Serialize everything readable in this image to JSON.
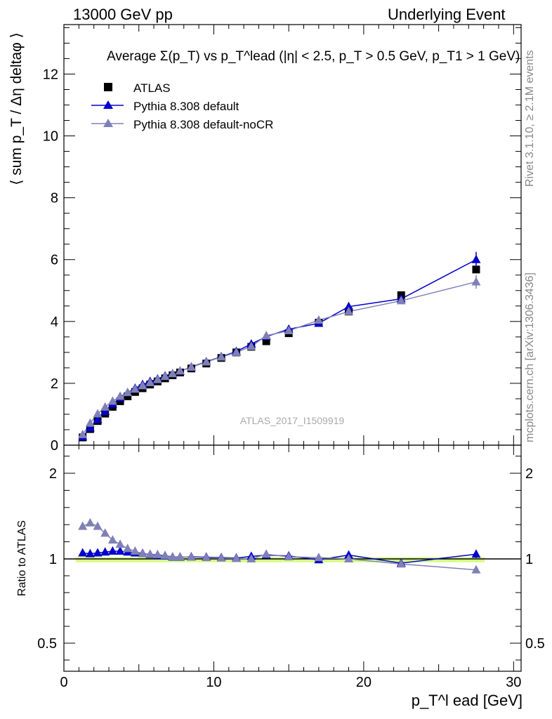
{
  "header": {
    "left": "13000 GeV pp",
    "right": "Underlying Event"
  },
  "side": {
    "rivet": "Rivet 3.1.10, ≥ 2.1M events",
    "mcplots": "mcplots.cern.ch [arXiv:1306.3436]"
  },
  "chart_data": {
    "type": "scatter",
    "title": "Average Σ(p_T) vs p_T^lead (|η| < 2.5, p_T > 0.5 GeV, p_T1 > 1 GeV)",
    "ylabel": "⟨ sum p_T / Δη deltaφ ⟩",
    "xlabel": "p_T^l ead [GeV]",
    "ratio_ylabel": "Ratio to ATLAS",
    "watermark": "ATLAS_2017_I1509919",
    "xlim": [
      0,
      30.5
    ],
    "ylim": [
      0,
      13.6
    ],
    "ratio_ylim": [
      0.35,
      2.3
    ],
    "x_ticks": [
      0,
      10,
      20,
      30
    ],
    "y_ticks": [
      0,
      2,
      4,
      6,
      8,
      10,
      12
    ],
    "ratio_y_ticks": [
      0.5,
      1,
      2
    ],
    "x": [
      1.25,
      1.75,
      2.25,
      2.75,
      3.25,
      3.75,
      4.25,
      4.75,
      5.25,
      5.75,
      6.25,
      6.75,
      7.25,
      7.75,
      8.5,
      9.5,
      10.5,
      11.5,
      12.5,
      13.5,
      15.0,
      17.0,
      19.0,
      22.5,
      27.5
    ],
    "legend_position": "top-left",
    "series": [
      {
        "name": "ATLAS",
        "marker": "square",
        "color": "#000000",
        "values": [
          0.25,
          0.52,
          0.78,
          1.02,
          1.24,
          1.42,
          1.58,
          1.72,
          1.84,
          1.96,
          2.06,
          2.16,
          2.26,
          2.35,
          2.48,
          2.64,
          2.82,
          3.0,
          3.18,
          3.36,
          3.62,
          3.96,
          4.32,
          4.85,
          5.68
        ],
        "errors": [
          0.02,
          0.02,
          0.02,
          0.02,
          0.02,
          0.02,
          0.02,
          0.02,
          0.02,
          0.02,
          0.02,
          0.02,
          0.03,
          0.03,
          0.03,
          0.03,
          0.04,
          0.04,
          0.05,
          0.05,
          0.06,
          0.07,
          0.08,
          0.1,
          0.12
        ]
      },
      {
        "name": "Pythia 8.308 default",
        "marker": "triangle",
        "color": "#0000cc",
        "values": [
          0.27,
          0.56,
          0.83,
          1.09,
          1.33,
          1.53,
          1.7,
          1.84,
          1.96,
          2.06,
          2.14,
          2.24,
          2.31,
          2.39,
          2.53,
          2.7,
          2.86,
          3.03,
          3.27,
          3.51,
          3.75,
          3.94,
          4.48,
          4.73,
          6.0
        ],
        "errors": [
          0.01,
          0.01,
          0.01,
          0.01,
          0.01,
          0.01,
          0.01,
          0.01,
          0.01,
          0.01,
          0.02,
          0.02,
          0.02,
          0.02,
          0.03,
          0.03,
          0.04,
          0.04,
          0.05,
          0.06,
          0.07,
          0.08,
          0.12,
          0.1,
          0.25
        ]
      },
      {
        "name": "Pythia 8.308 default-noCR",
        "marker": "triangle",
        "color": "#8080b8",
        "values": [
          0.34,
          0.71,
          1.01,
          1.23,
          1.42,
          1.58,
          1.7,
          1.81,
          1.92,
          2.02,
          2.12,
          2.22,
          2.31,
          2.4,
          2.52,
          2.69,
          2.85,
          3.0,
          3.19,
          3.54,
          3.7,
          4.04,
          4.32,
          4.67,
          5.28
        ],
        "errors": [
          0.01,
          0.01,
          0.01,
          0.01,
          0.01,
          0.01,
          0.01,
          0.01,
          0.01,
          0.01,
          0.02,
          0.02,
          0.02,
          0.02,
          0.03,
          0.03,
          0.04,
          0.04,
          0.05,
          0.06,
          0.07,
          0.08,
          0.1,
          0.1,
          0.22
        ]
      }
    ],
    "ratio_series": [
      {
        "name": "Pythia 8.308 default",
        "color": "#0000cc",
        "values": [
          1.07,
          1.06,
          1.07,
          1.08,
          1.09,
          1.09,
          1.08,
          1.07,
          1.065,
          1.05,
          1.04,
          1.035,
          1.02,
          1.02,
          1.025,
          1.02,
          1.015,
          1.01,
          1.03,
          1.045,
          1.035,
          0.995,
          1.045,
          0.975,
          1.055
        ],
        "errors": [
          0.01,
          0.01,
          0.01,
          0.01,
          0.01,
          0.01,
          0.01,
          0.01,
          0.01,
          0.01,
          0.01,
          0.01,
          0.01,
          0.01,
          0.01,
          0.01,
          0.01,
          0.01,
          0.015,
          0.015,
          0.02,
          0.02,
          0.03,
          0.02,
          0.045
        ]
      },
      {
        "name": "Pythia 8.308 default-noCR",
        "color": "#8080b8",
        "values": [
          1.38,
          1.42,
          1.38,
          1.3,
          1.22,
          1.17,
          1.12,
          1.09,
          1.06,
          1.055,
          1.05,
          1.04,
          1.025,
          1.025,
          1.02,
          1.015,
          1.01,
          1.005,
          1.0,
          1.055,
          1.025,
          1.015,
          1.0,
          0.97,
          0.935
        ]
      }
    ],
    "reference_band": {
      "center": 1.0,
      "half_width": 0.02,
      "color": "#ccff66"
    }
  }
}
